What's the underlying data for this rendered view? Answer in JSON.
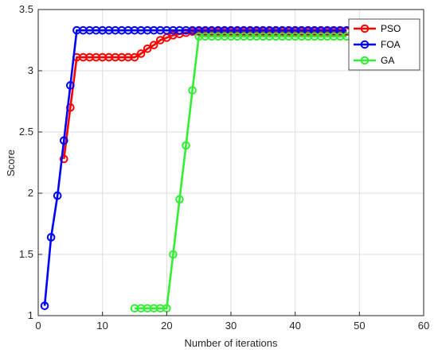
{
  "chart_data": {
    "type": "line",
    "xlabel": "Number of iterations",
    "ylabel": "Score",
    "xlim": [
      0,
      60
    ],
    "ylim": [
      1,
      3.5
    ],
    "xticks": [
      0,
      10,
      20,
      30,
      40,
      50,
      60
    ],
    "yticks": [
      1,
      1.5,
      2,
      2.5,
      3,
      3.5
    ],
    "grid": true,
    "legend_position": "top-right",
    "series": [
      {
        "name": "PSO",
        "color": "#ff0000",
        "x": [
          4,
          5,
          6,
          7,
          8,
          9,
          10,
          11,
          12,
          13,
          14,
          15,
          16,
          17,
          18,
          19,
          20,
          21,
          22,
          23,
          24,
          25,
          26,
          27,
          28,
          29,
          30,
          31,
          32,
          33,
          34,
          35,
          36,
          37,
          38,
          39,
          40,
          41,
          42,
          43,
          44,
          45,
          46,
          47,
          48
        ],
        "y": [
          2.28,
          2.7,
          3.11,
          3.11,
          3.11,
          3.11,
          3.11,
          3.11,
          3.11,
          3.11,
          3.11,
          3.11,
          3.14,
          3.18,
          3.21,
          3.25,
          3.27,
          3.29,
          3.3,
          3.31,
          3.32,
          3.32,
          3.32,
          3.32,
          3.32,
          3.32,
          3.32,
          3.32,
          3.32,
          3.32,
          3.32,
          3.32,
          3.32,
          3.32,
          3.32,
          3.32,
          3.32,
          3.32,
          3.32,
          3.32,
          3.32,
          3.32,
          3.32,
          3.32,
          3.32
        ]
      },
      {
        "name": "FOA",
        "color": "#0000ff",
        "x": [
          1,
          2,
          3,
          4,
          5,
          6,
          7,
          8,
          9,
          10,
          11,
          12,
          13,
          14,
          15,
          16,
          17,
          18,
          19,
          20,
          21,
          22,
          23,
          24,
          25,
          26,
          27,
          28,
          29,
          30,
          31,
          32,
          33,
          34,
          35,
          36,
          37,
          38,
          39,
          40,
          41,
          42,
          43,
          44,
          45,
          46,
          47,
          48
        ],
        "y": [
          1.08,
          1.64,
          1.98,
          2.43,
          2.88,
          3.33,
          3.33,
          3.33,
          3.33,
          3.33,
          3.33,
          3.33,
          3.33,
          3.33,
          3.33,
          3.33,
          3.33,
          3.33,
          3.33,
          3.33,
          3.33,
          3.33,
          3.33,
          3.33,
          3.33,
          3.33,
          3.33,
          3.33,
          3.33,
          3.33,
          3.33,
          3.33,
          3.33,
          3.33,
          3.33,
          3.33,
          3.33,
          3.33,
          3.33,
          3.33,
          3.33,
          3.33,
          3.33,
          3.33,
          3.33,
          3.33,
          3.33,
          3.33
        ]
      },
      {
        "name": "GA",
        "color": "#33ee33",
        "x": [
          15,
          16,
          17,
          18,
          19,
          20,
          21,
          22,
          23,
          24,
          25,
          26,
          27,
          28,
          29,
          30,
          31,
          32,
          33,
          34,
          35,
          36,
          37,
          38,
          39,
          40,
          41,
          42,
          43,
          44,
          45,
          46,
          47,
          48
        ],
        "y": [
          1.06,
          1.06,
          1.06,
          1.06,
          1.06,
          1.06,
          1.5,
          1.95,
          2.39,
          2.84,
          3.28,
          3.28,
          3.28,
          3.28,
          3.28,
          3.28,
          3.28,
          3.28,
          3.28,
          3.28,
          3.28,
          3.28,
          3.28,
          3.28,
          3.28,
          3.28,
          3.28,
          3.28,
          3.28,
          3.28,
          3.28,
          3.28,
          3.28,
          3.28
        ]
      }
    ]
  }
}
